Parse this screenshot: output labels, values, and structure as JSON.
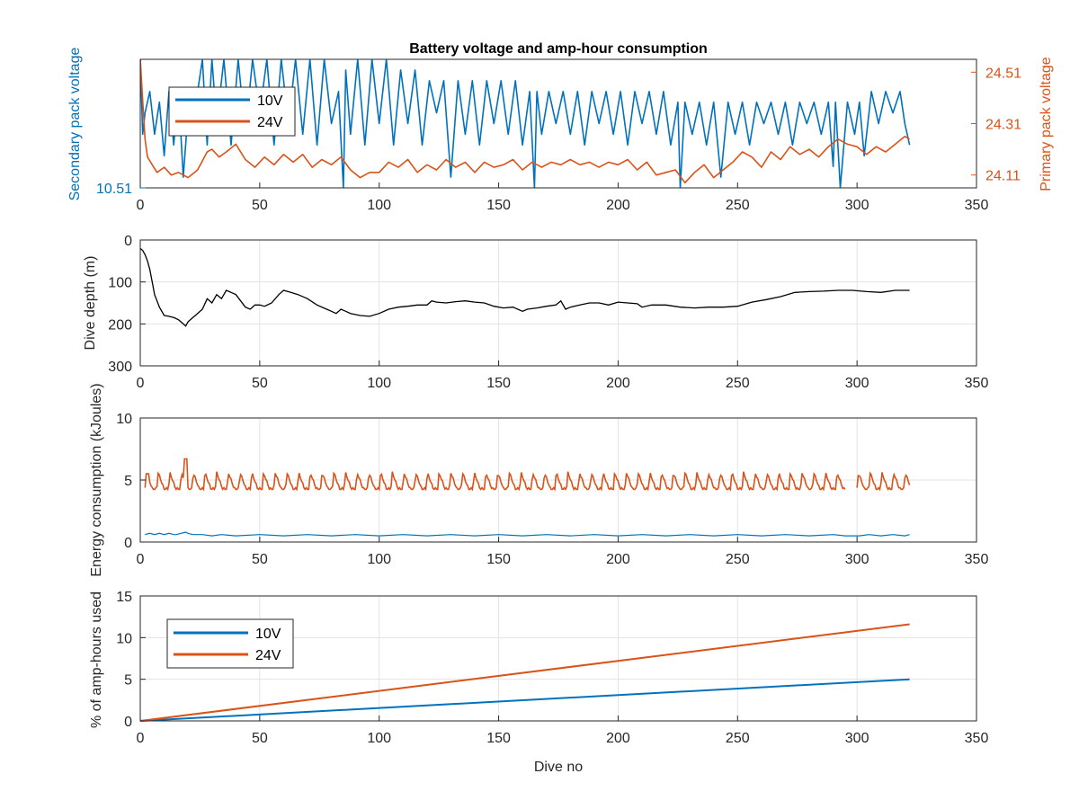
{
  "chart_data": [
    {
      "type": "line",
      "title": "Battery voltage and amp-hour consumption",
      "xlabel": "",
      "ylabel_left": "Secondary pack voltage",
      "ylabel_right": "Primary pack voltage",
      "xlim": [
        0,
        350
      ],
      "xticks": [
        "0",
        "50",
        "100",
        "150",
        "200",
        "250",
        "300",
        "350"
      ],
      "ylim_left": [
        10.51,
        10.63
      ],
      "yticks_left": [
        "10.51"
      ],
      "ylim_right": [
        24.06,
        24.56
      ],
      "yticks_right": [
        "24.11",
        "24.31",
        "24.51"
      ],
      "grid": false,
      "legend": "top-left",
      "series": [
        {
          "name": "10V",
          "axis": "left",
          "color": "#0072BD",
          "x": [
            0,
            1,
            2,
            4,
            6,
            8,
            10,
            12,
            14,
            16,
            18,
            20,
            22,
            24,
            26,
            28,
            30,
            32,
            35,
            38,
            41,
            44,
            47,
            50,
            53,
            56,
            59,
            62,
            65,
            68,
            71,
            74,
            77,
            80,
            83,
            85,
            86,
            88,
            91,
            94,
            97,
            100,
            103,
            106,
            109,
            112,
            115,
            118,
            121,
            124,
            127,
            130,
            133,
            136,
            139,
            142,
            145,
            148,
            151,
            154,
            157,
            160,
            163,
            165,
            166,
            168,
            171,
            174,
            177,
            180,
            183,
            186,
            189,
            192,
            195,
            198,
            201,
            204,
            207,
            210,
            213,
            216,
            219,
            222,
            225,
            226,
            228,
            231,
            234,
            237,
            240,
            243,
            246,
            249,
            252,
            255,
            258,
            261,
            264,
            267,
            270,
            273,
            276,
            279,
            282,
            285,
            288,
            290,
            291,
            293,
            296,
            299,
            301,
            303,
            306,
            309,
            312,
            315,
            318,
            320,
            322
          ],
          "y": [
            10.63,
            10.56,
            10.58,
            10.6,
            10.56,
            10.59,
            10.54,
            10.6,
            10.55,
            10.6,
            10.52,
            10.58,
            10.56,
            10.6,
            10.63,
            10.55,
            10.63,
            10.57,
            10.63,
            10.55,
            10.63,
            10.56,
            10.63,
            10.58,
            10.63,
            10.55,
            10.63,
            10.57,
            10.63,
            10.56,
            10.63,
            10.55,
            10.63,
            10.57,
            10.6,
            10.51,
            10.62,
            10.56,
            10.63,
            10.55,
            10.63,
            10.57,
            10.63,
            10.55,
            10.62,
            10.57,
            10.62,
            10.55,
            10.61,
            10.58,
            10.61,
            10.52,
            10.61,
            10.56,
            10.61,
            10.55,
            10.61,
            10.57,
            10.61,
            10.56,
            10.61,
            10.55,
            10.6,
            10.51,
            10.6,
            10.56,
            10.6,
            10.57,
            10.6,
            10.56,
            10.6,
            10.55,
            10.6,
            10.57,
            10.6,
            10.56,
            10.6,
            10.55,
            10.6,
            10.57,
            10.6,
            10.56,
            10.6,
            10.55,
            10.59,
            10.51,
            10.59,
            10.56,
            10.59,
            10.55,
            10.59,
            10.52,
            10.59,
            10.56,
            10.59,
            10.55,
            10.59,
            10.57,
            10.59,
            10.56,
            10.59,
            10.55,
            10.59,
            10.57,
            10.59,
            10.56,
            10.59,
            10.53,
            10.59,
            10.51,
            10.59,
            10.56,
            10.59,
            10.54,
            10.6,
            10.57,
            10.6,
            10.58,
            10.6,
            10.57,
            10.55
          ]
        },
        {
          "name": "24V",
          "axis": "right",
          "color": "#D95319",
          "x": [
            0,
            1,
            2,
            3,
            5,
            7,
            10,
            13,
            16,
            20,
            24,
            28,
            30,
            33,
            36,
            40,
            44,
            48,
            52,
            56,
            60,
            64,
            68,
            72,
            76,
            80,
            84,
            88,
            92,
            96,
            100,
            104,
            108,
            112,
            116,
            120,
            124,
            128,
            132,
            136,
            140,
            144,
            148,
            152,
            156,
            160,
            164,
            168,
            172,
            176,
            180,
            184,
            188,
            192,
            196,
            200,
            204,
            208,
            212,
            216,
            220,
            224,
            228,
            232,
            236,
            240,
            244,
            248,
            252,
            256,
            260,
            264,
            268,
            272,
            276,
            280,
            284,
            288,
            292,
            296,
            300,
            304,
            308,
            312,
            316,
            320,
            322
          ],
          "y": [
            24.56,
            24.4,
            24.25,
            24.18,
            24.15,
            24.12,
            24.14,
            24.11,
            24.12,
            24.1,
            24.13,
            24.2,
            24.21,
            24.18,
            24.2,
            24.23,
            24.17,
            24.14,
            24.18,
            24.15,
            24.19,
            24.16,
            24.19,
            24.14,
            24.17,
            24.15,
            24.18,
            24.13,
            24.1,
            24.12,
            24.12,
            24.16,
            24.14,
            24.17,
            24.12,
            24.15,
            24.13,
            24.17,
            24.14,
            24.16,
            24.12,
            24.16,
            24.14,
            24.15,
            24.17,
            24.13,
            24.16,
            24.14,
            24.16,
            24.15,
            24.17,
            24.15,
            24.16,
            24.14,
            24.16,
            24.15,
            24.17,
            24.13,
            24.16,
            24.11,
            24.12,
            24.13,
            24.08,
            24.12,
            24.15,
            24.1,
            24.13,
            24.16,
            24.2,
            24.18,
            24.14,
            24.2,
            24.17,
            24.22,
            24.19,
            24.21,
            24.18,
            24.22,
            24.25,
            24.23,
            24.22,
            24.19,
            24.22,
            24.2,
            24.23,
            24.26,
            24.25
          ]
        }
      ]
    },
    {
      "type": "line",
      "title": "",
      "xlabel": "",
      "ylabel": "Dive depth (m)",
      "xlim": [
        0,
        350
      ],
      "xticks": [
        "0",
        "50",
        "100",
        "150",
        "200",
        "250",
        "300",
        "350"
      ],
      "ylim": [
        0,
        300
      ],
      "yreversed": true,
      "yticks": [
        "0",
        "100",
        "200",
        "300"
      ],
      "grid": true,
      "series": [
        {
          "color": "#000000",
          "x": [
            0,
            1,
            2,
            3,
            4,
            5,
            6,
            8,
            10,
            12,
            14,
            16,
            18,
            19,
            20,
            22,
            24,
            26,
            28,
            30,
            32,
            34,
            36,
            38,
            40,
            42,
            44,
            46,
            48,
            50,
            52,
            55,
            58,
            60,
            63,
            66,
            70,
            74,
            78,
            80,
            82,
            84,
            86,
            88,
            92,
            96,
            100,
            104,
            108,
            112,
            116,
            120,
            122,
            124,
            128,
            132,
            136,
            140,
            144,
            148,
            152,
            156,
            160,
            162,
            166,
            170,
            174,
            176,
            178,
            180,
            184,
            188,
            192,
            196,
            200,
            204,
            208,
            210,
            214,
            220,
            226,
            232,
            238,
            244,
            250,
            256,
            262,
            268,
            274,
            280,
            286,
            292,
            298,
            304,
            310,
            316,
            322
          ],
          "y": [
            20,
            25,
            35,
            50,
            70,
            100,
            130,
            160,
            180,
            182,
            185,
            190,
            200,
            205,
            195,
            185,
            175,
            165,
            140,
            150,
            130,
            140,
            120,
            125,
            130,
            145,
            160,
            165,
            155,
            155,
            158,
            150,
            130,
            120,
            125,
            130,
            140,
            155,
            165,
            170,
            175,
            165,
            170,
            175,
            180,
            182,
            175,
            165,
            160,
            158,
            155,
            155,
            145,
            148,
            150,
            147,
            145,
            148,
            150,
            158,
            162,
            160,
            170,
            165,
            162,
            158,
            155,
            145,
            165,
            160,
            155,
            150,
            150,
            155,
            148,
            150,
            152,
            160,
            155,
            155,
            160,
            162,
            160,
            160,
            158,
            148,
            142,
            135,
            125,
            123,
            122,
            120,
            120,
            123,
            125,
            120,
            120
          ]
        }
      ]
    },
    {
      "type": "line",
      "title": "",
      "xlabel": "",
      "ylabel": "Energy consumption (kJoules)",
      "xlim": [
        0,
        350
      ],
      "xticks": [
        "0",
        "50",
        "100",
        "150",
        "200",
        "250",
        "300",
        "350"
      ],
      "ylim": [
        0,
        10
      ],
      "yticks": [
        "0",
        "5",
        "10"
      ],
      "grid": true,
      "series": [
        {
          "color": "#0072BD",
          "x": [
            2,
            4,
            6,
            8,
            10,
            12,
            14,
            15,
            19,
            20,
            22,
            26,
            30,
            34,
            40,
            50,
            60,
            70,
            80,
            90,
            100,
            110,
            120,
            130,
            140,
            150,
            160,
            170,
            180,
            190,
            200,
            210,
            220,
            230,
            240,
            250,
            260,
            270,
            280,
            290,
            295,
            301,
            305,
            310,
            315,
            320,
            322
          ],
          "y": [
            0.6,
            0.7,
            0.6,
            0.7,
            0.6,
            0.7,
            0.6,
            0.6,
            0.8,
            0.7,
            0.6,
            0.6,
            0.5,
            0.6,
            0.5,
            0.6,
            0.5,
            0.6,
            0.5,
            0.6,
            0.5,
            0.6,
            0.5,
            0.6,
            0.5,
            0.6,
            0.5,
            0.6,
            0.5,
            0.6,
            0.5,
            0.6,
            0.5,
            0.6,
            0.5,
            0.6,
            0.5,
            0.6,
            0.5,
            0.6,
            0.5,
            0.5,
            0.6,
            0.5,
            0.6,
            0.5,
            0.6
          ]
        },
        {
          "color": "#D95319",
          "spikes": true,
          "x_start": 2,
          "x_end": 322,
          "gap": [
            295,
            300
          ],
          "base": 4.3,
          "spike_peak": 5.6,
          "spike_spacing": 4.9,
          "extra_peaks": [
            {
              "x": 19,
              "y": 6.7
            },
            {
              "x": 3,
              "y": 5.5
            }
          ]
        }
      ]
    },
    {
      "type": "line",
      "title": "",
      "xlabel": "Dive no",
      "ylabel": "% of amp-hours used",
      "xlim": [
        0,
        350
      ],
      "xticks": [
        "0",
        "50",
        "100",
        "150",
        "200",
        "250",
        "300",
        "350"
      ],
      "ylim": [
        0,
        15
      ],
      "yticks": [
        "0",
        "5",
        "10",
        "15"
      ],
      "grid": true,
      "legend": "top-left",
      "series": [
        {
          "name": "10V",
          "color": "#0072BD",
          "x": [
            0,
            322
          ],
          "y": [
            0,
            5.0
          ]
        },
        {
          "name": "24V",
          "color": "#D95319",
          "x": [
            0,
            322
          ],
          "y": [
            0,
            11.6
          ]
        }
      ]
    }
  ]
}
